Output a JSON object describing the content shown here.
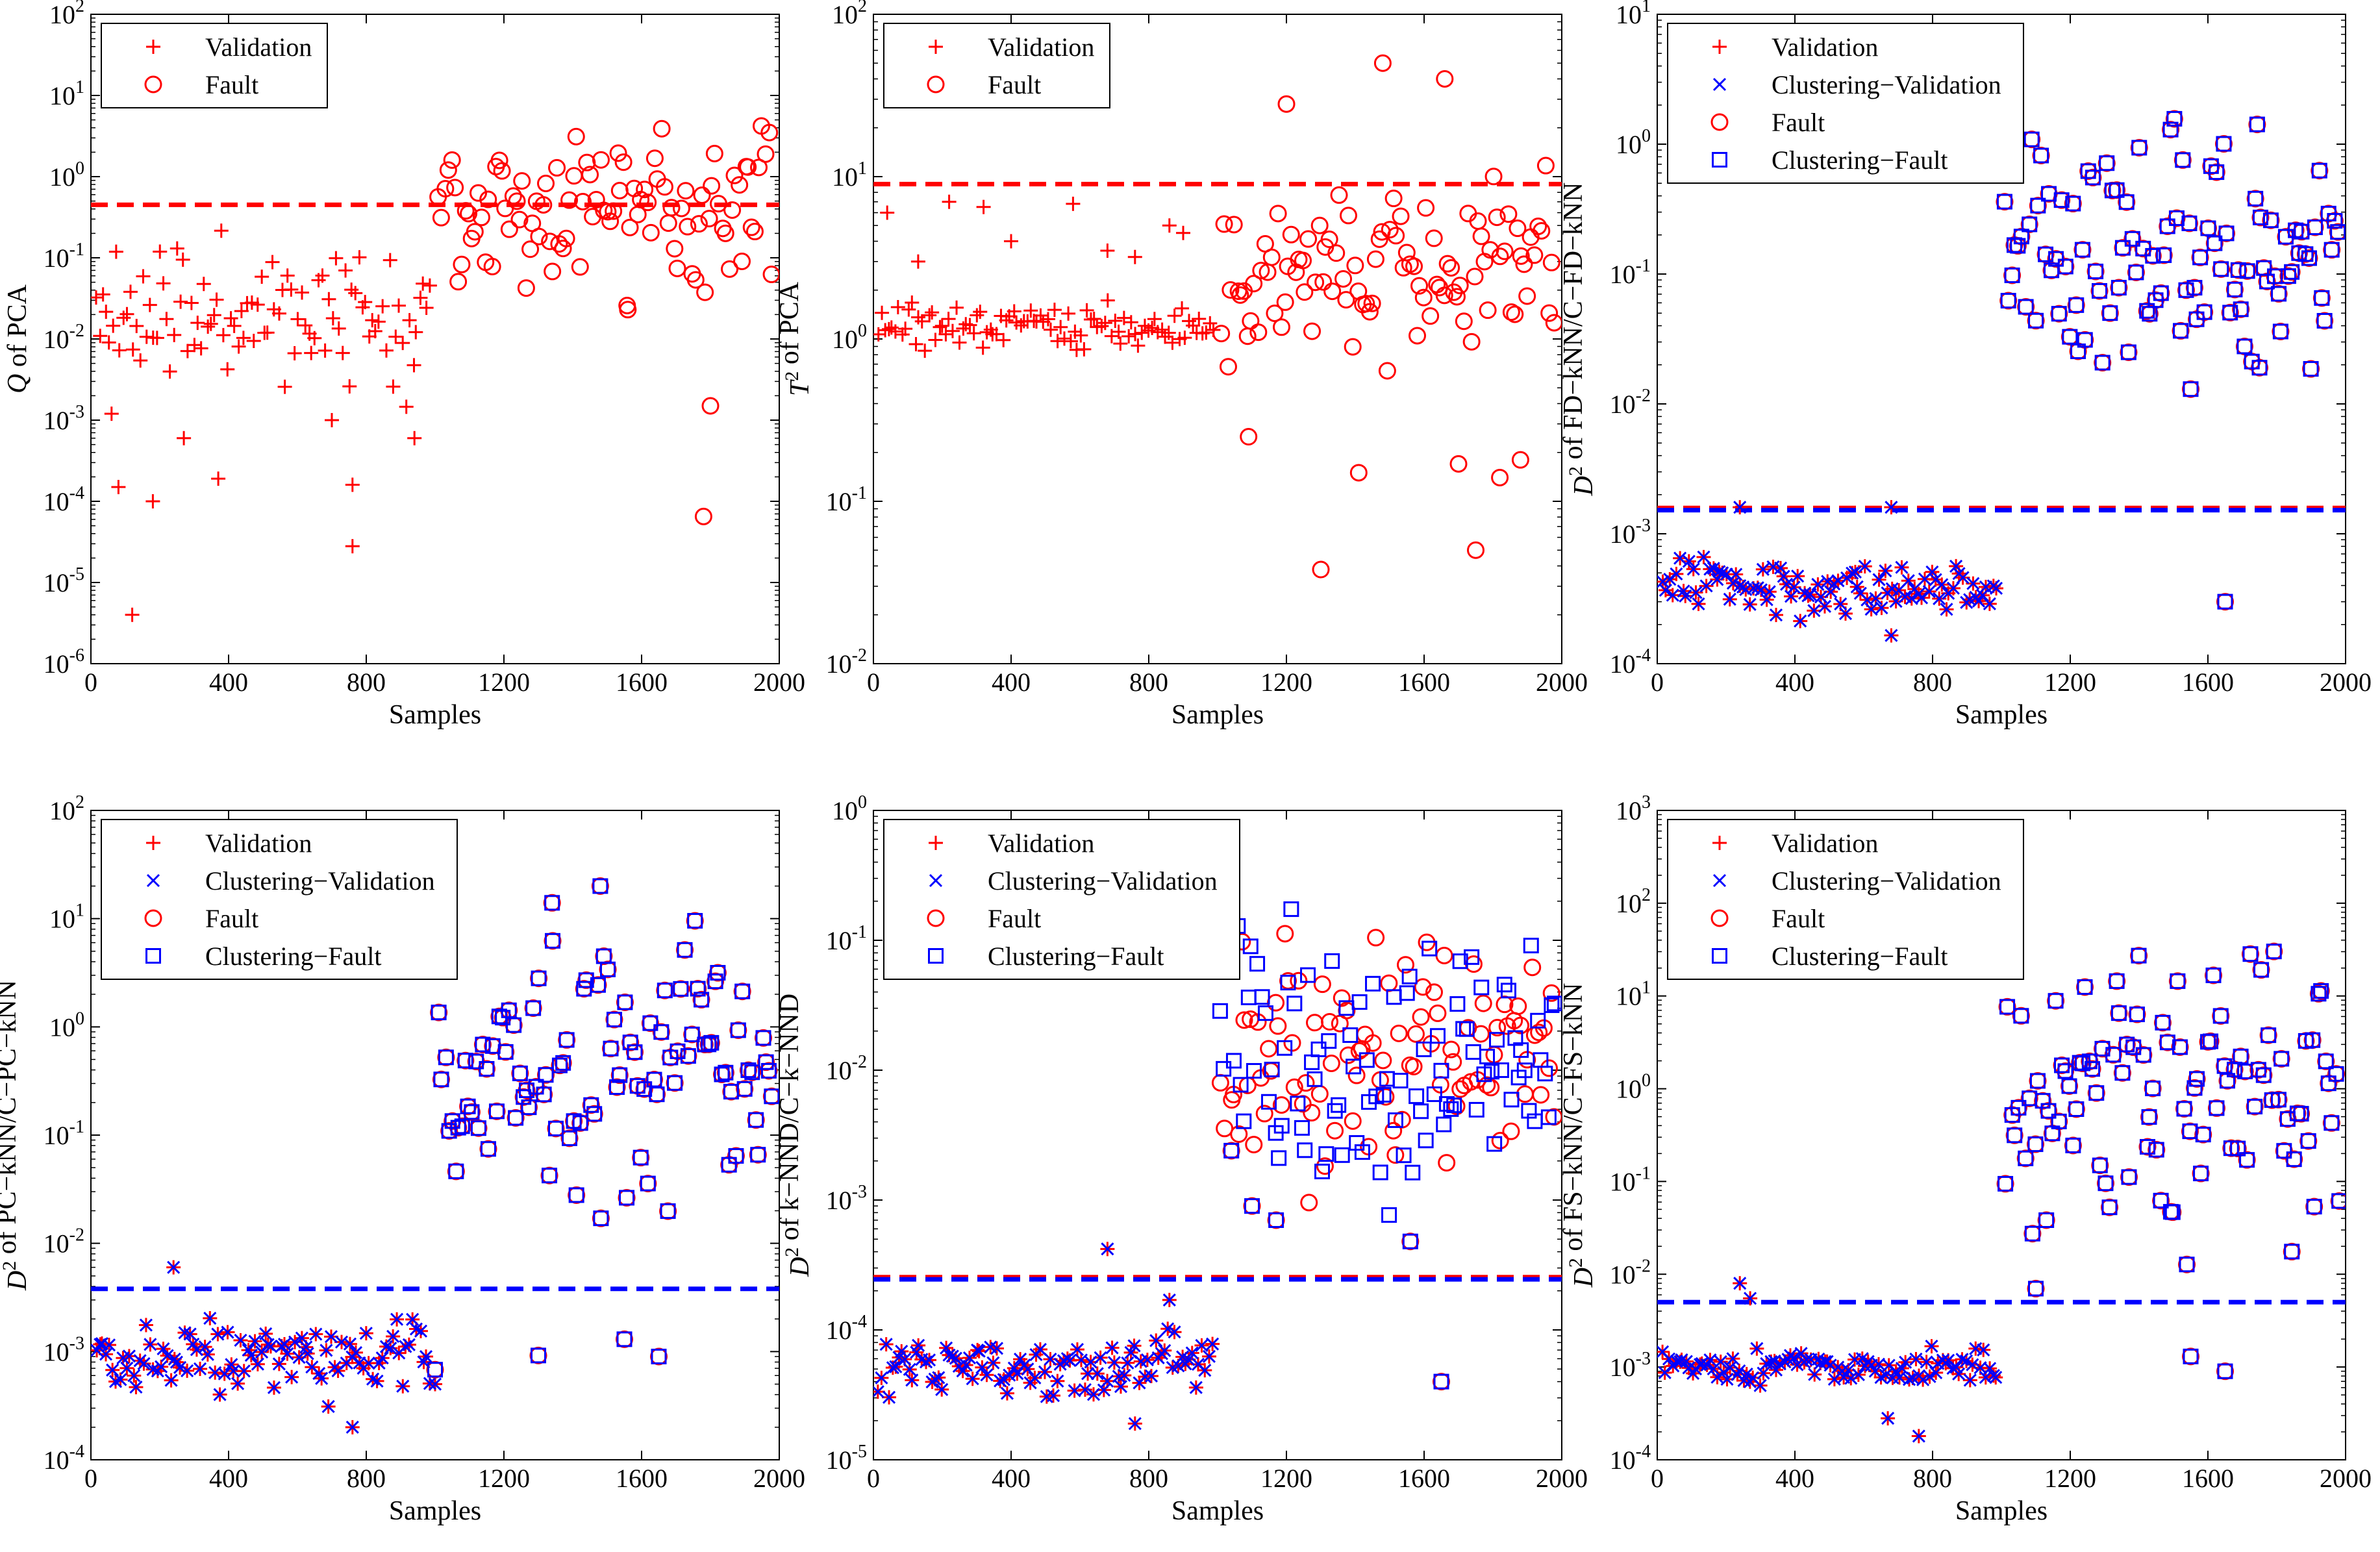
{
  "figure": {
    "colors": {
      "red": "#ff0000",
      "blue": "#0000ff",
      "black": "#000000"
    }
  },
  "chart_data": [
    {
      "type": "scatter",
      "id": "pca-q",
      "xlabel": "Samples",
      "ylabel": "Q of PCA",
      "ylabel_parts": [
        {
          "t": "Q",
          "i": true
        },
        {
          "t": " of PCA"
        }
      ],
      "yscale": "log",
      "xlim": [
        0,
        2000
      ],
      "ylim": [
        1e-06,
        100
      ],
      "xticks": [
        "0",
        "400",
        "800",
        "1200",
        "1600",
        "2000"
      ],
      "ytick_exponents": [
        -6,
        -5,
        -4,
        -3,
        -2,
        -1,
        0,
        1,
        2
      ],
      "control_limit": 0.45,
      "limits": [
        {
          "value": 0.45,
          "color": "red"
        }
      ],
      "legend": [
        {
          "label": "Validation",
          "marker": "plus",
          "color": "red"
        },
        {
          "label": "Fault",
          "marker": "circle",
          "color": "red"
        }
      ],
      "normal_range": [
        -2.9,
        -0.45
      ],
      "fault_range": [
        -1.9,
        1.2
      ],
      "normal_outliers": [
        [
          120,
          4e-06
        ],
        [
          760,
          2.8e-05
        ],
        [
          180,
          0.0001
        ],
        [
          80,
          0.00015
        ],
        [
          760,
          0.00016
        ],
        [
          370,
          0.00019
        ],
        [
          270,
          0.0006
        ],
        [
          940,
          0.0006
        ],
        [
          60,
          0.0012
        ],
        [
          700,
          0.001
        ]
      ],
      "fault_outliers": [
        [
          1780,
          6.5e-05
        ],
        [
          1800,
          0.0015
        ],
        [
          1560,
          0.023
        ]
      ],
      "series": [
        {
          "name": "Validation",
          "role": "normal",
          "marker": "plus",
          "color": "red",
          "seed": 11,
          "dx": 0
        },
        {
          "name": "Fault",
          "role": "fault",
          "marker": "circle",
          "color": "red",
          "seed": 12,
          "dx": 0
        }
      ]
    },
    {
      "type": "scatter",
      "id": "pca-t2",
      "xlabel": "Samples",
      "ylabel": "T2 of PCA",
      "ylabel_parts": [
        {
          "t": "T",
          "i": true
        },
        {
          "t": "2",
          "sup": true
        },
        {
          "t": " of PCA"
        }
      ],
      "yscale": "log",
      "xlim": [
        0,
        2000
      ],
      "ylim": [
        0.01,
        100
      ],
      "xticks": [
        "0",
        "400",
        "800",
        "1200",
        "1600",
        "2000"
      ],
      "ytick_exponents": [
        -2,
        -1,
        0,
        1,
        2
      ],
      "control_limit": 9,
      "limits": [
        {
          "value": 9,
          "color": "red"
        }
      ],
      "legend": [
        {
          "label": "Validation",
          "marker": "plus",
          "color": "red"
        },
        {
          "label": "Fault",
          "marker": "circle",
          "color": "red"
        }
      ],
      "normal_range": [
        -0.12,
        0.28
      ],
      "fault_range": [
        -0.3,
        1.2
      ],
      "normal_outliers": [
        [
          40,
          6
        ],
        [
          220,
          7
        ],
        [
          320,
          6.5
        ],
        [
          580,
          6.8
        ],
        [
          860,
          5
        ],
        [
          900,
          4.5
        ],
        [
          130,
          3
        ],
        [
          400,
          4
        ],
        [
          680,
          3.5
        ],
        [
          760,
          3.2
        ]
      ],
      "fault_outliers": [
        [
          1300,
          0.038
        ],
        [
          1750,
          0.05
        ],
        [
          1410,
          0.15
        ],
        [
          1700,
          0.17
        ],
        [
          1820,
          0.14
        ],
        [
          1880,
          0.18
        ],
        [
          1090,
          0.25
        ],
        [
          1480,
          50
        ],
        [
          1660,
          40
        ],
        [
          1200,
          28
        ]
      ],
      "series": [
        {
          "name": "Validation",
          "role": "normal",
          "marker": "plus",
          "color": "red",
          "seed": 21,
          "dx": 0
        },
        {
          "name": "Fault",
          "role": "fault",
          "marker": "circle",
          "color": "red",
          "seed": 22,
          "dx": 0
        }
      ]
    },
    {
      "type": "scatter",
      "id": "fd-knn",
      "xlabel": "Samples",
      "ylabel": "D2 of FD-kNN/C-FD-kNN",
      "ylabel_parts": [
        {
          "t": "D",
          "i": true
        },
        {
          "t": "2",
          "sup": true
        },
        {
          "t": " of FD−kNN/C−FD−kNN"
        }
      ],
      "yscale": "log",
      "xlim": [
        0,
        2000
      ],
      "ylim": [
        0.0001,
        10
      ],
      "xticks": [
        "0",
        "400",
        "800",
        "1200",
        "1600",
        "2000"
      ],
      "ytick_exponents": [
        -4,
        -3,
        -2,
        -1,
        0,
        1
      ],
      "control_limit": 0.00155,
      "limits": [
        {
          "value": 0.00158,
          "color": "red"
        },
        {
          "value": 0.00152,
          "color": "blue"
        }
      ],
      "legend": [
        {
          "label": "Validation",
          "marker": "plus",
          "color": "red"
        },
        {
          "label": "Clustering−Validation",
          "marker": "cross",
          "color": "blue"
        },
        {
          "label": "Fault",
          "marker": "circle",
          "color": "red"
        },
        {
          "label": "Clustering−Fault",
          "marker": "square",
          "color": "blue"
        }
      ],
      "normal_range": [
        -3.75,
        -3.05
      ],
      "fault_range": [
        -2.1,
        0.5
      ],
      "normal_outliers": [
        [
          680,
          0.000165
        ],
        [
          240,
          0.0016
        ],
        [
          680,
          0.0016
        ]
      ],
      "fault_outliers": [
        [
          1650,
          0.0003
        ],
        [
          1550,
          0.013
        ],
        [
          1750,
          0.019
        ]
      ],
      "series": [
        {
          "name": "Validation",
          "role": "normal",
          "marker": "plus",
          "color": "red",
          "seed": 31,
          "dx": 0
        },
        {
          "name": "Clustering−Validation",
          "role": "normal",
          "marker": "cross",
          "color": "blue",
          "seed": 31,
          "dx": 0
        },
        {
          "name": "Fault",
          "role": "fault",
          "marker": "circle",
          "color": "red",
          "seed": 32,
          "dx": 0
        },
        {
          "name": "Clustering−Fault",
          "role": "fault",
          "marker": "square",
          "color": "blue",
          "seed": 32,
          "dx": 0
        }
      ]
    },
    {
      "type": "scatter",
      "id": "pc-knn",
      "xlabel": "Samples",
      "ylabel": "D2 of PC-kNN/C-PC-kNN",
      "ylabel_parts": [
        {
          "t": "D",
          "i": true
        },
        {
          "t": "2",
          "sup": true
        },
        {
          "t": " of PC−kNN/C−PC−kNN"
        }
      ],
      "yscale": "log",
      "xlim": [
        0,
        2000
      ],
      "ylim": [
        0.0001,
        100
      ],
      "xticks": [
        "0",
        "400",
        "800",
        "1200",
        "1600",
        "2000"
      ],
      "ytick_exponents": [
        -4,
        -3,
        -2,
        -1,
        0,
        1,
        2
      ],
      "control_limit": 0.0038,
      "limits": [
        {
          "value": 0.0038,
          "color": "blue"
        }
      ],
      "legend": [
        {
          "label": "Validation",
          "marker": "plus",
          "color": "red"
        },
        {
          "label": "Clustering−Validation",
          "marker": "cross",
          "color": "blue"
        },
        {
          "label": "Fault",
          "marker": "circle",
          "color": "red"
        },
        {
          "label": "Clustering−Fault",
          "marker": "square",
          "color": "blue"
        }
      ],
      "normal_range": [
        -3.55,
        -2.55
      ],
      "fault_range": [
        -2.1,
        1.3
      ],
      "normal_outliers": [
        [
          760,
          0.0002
        ],
        [
          240,
          0.006
        ],
        [
          1000,
          0.0005
        ]
      ],
      "fault_outliers": [
        [
          1650,
          0.0009
        ],
        [
          1550,
          0.0013
        ],
        [
          1300,
          0.00092
        ],
        [
          1000,
          0.00068
        ],
        [
          1340,
          14
        ],
        [
          1480,
          20
        ]
      ],
      "series": [
        {
          "name": "Validation",
          "role": "normal",
          "marker": "plus",
          "color": "red",
          "seed": 41,
          "dx": 0
        },
        {
          "name": "Clustering−Validation",
          "role": "normal",
          "marker": "cross",
          "color": "blue",
          "seed": 41,
          "dx": 0
        },
        {
          "name": "Fault",
          "role": "fault",
          "marker": "circle",
          "color": "red",
          "seed": 42,
          "dx": 0
        },
        {
          "name": "Clustering−Fault",
          "role": "fault",
          "marker": "square",
          "color": "blue",
          "seed": 42,
          "dx": 0
        }
      ]
    },
    {
      "type": "scatter",
      "id": "k-nnd",
      "xlabel": "Samples",
      "ylabel": "D2 of k-NND/C-k-NND",
      "ylabel_parts": [
        {
          "t": "D",
          "i": true
        },
        {
          "t": "2",
          "sup": true
        },
        {
          "t": " of k−NND/C−k−NND"
        }
      ],
      "yscale": "log",
      "xlim": [
        0,
        2000
      ],
      "ylim": [
        1e-05,
        1
      ],
      "xticks": [
        "0",
        "400",
        "800",
        "1200",
        "1600",
        "2000"
      ],
      "ytick_exponents": [
        -5,
        -4,
        -3,
        -2,
        -1,
        0
      ],
      "control_limit": 0.00025,
      "limits": [
        {
          "value": 0.000255,
          "color": "red"
        },
        {
          "value": 0.000245,
          "color": "blue"
        }
      ],
      "legend": [
        {
          "label": "Validation",
          "marker": "plus",
          "color": "red"
        },
        {
          "label": "Clustering−Validation",
          "marker": "cross",
          "color": "blue"
        },
        {
          "label": "Fault",
          "marker": "circle",
          "color": "red"
        },
        {
          "label": "Clustering−Fault",
          "marker": "square",
          "color": "blue"
        }
      ],
      "normal_range": [
        -4.6,
        -3.95
      ],
      "fault_range": [
        -3.3,
        -0.45
      ],
      "normal_outliers": [
        [
          760,
          1.9e-05
        ],
        [
          680,
          0.00042
        ],
        [
          860,
          0.00017
        ]
      ],
      "fault_outliers": [
        [
          1650,
          4e-05
        ],
        [
          1560,
          0.00048
        ],
        [
          1040,
          0.0024
        ],
        [
          1100,
          0.0009
        ],
        [
          1170,
          0.0007
        ]
      ],
      "series": [
        {
          "name": "Validation",
          "role": "normal",
          "marker": "plus",
          "color": "red",
          "seed": 51,
          "dx": 0
        },
        {
          "name": "Clustering−Validation",
          "role": "normal",
          "marker": "cross",
          "color": "blue",
          "seed": 51,
          "dx": 0
        },
        {
          "name": "Fault",
          "role": "fault",
          "marker": "circle",
          "color": "red",
          "seed": 52,
          "dx": 0
        },
        {
          "name": "Clustering−Fault",
          "role": "fault",
          "marker": "square",
          "color": "blue",
          "seed": 53,
          "dx": 0
        }
      ]
    },
    {
      "type": "scatter",
      "id": "fs-knn",
      "xlabel": "Samples",
      "ylabel": "D2 of FS-kNN/C-FS-kNN",
      "ylabel_parts": [
        {
          "t": "D",
          "i": true
        },
        {
          "t": "2",
          "sup": true
        },
        {
          "t": " of FS−kNN/C−FS−kNN"
        }
      ],
      "yscale": "log",
      "xlim": [
        0,
        2000
      ],
      "ylim": [
        0.0001,
        1000
      ],
      "xticks": [
        "0",
        "400",
        "800",
        "1200",
        "1600",
        "2000"
      ],
      "ytick_exponents": [
        -4,
        -3,
        -2,
        -1,
        0,
        1,
        2,
        3
      ],
      "control_limit": 0.005,
      "limits": [
        {
          "value": 0.005,
          "color": "blue"
        }
      ],
      "legend": [
        {
          "label": "Validation",
          "marker": "plus",
          "color": "red"
        },
        {
          "label": "Clustering−Validation",
          "marker": "cross",
          "color": "blue"
        },
        {
          "label": "Fault",
          "marker": "circle",
          "color": "red"
        },
        {
          "label": "Clustering−Fault",
          "marker": "square",
          "color": "blue"
        }
      ],
      "normal_range": [
        -3.3,
        -2.7
      ],
      "fault_range": [
        -2.2,
        2.25
      ],
      "normal_outliers": [
        [
          760,
          0.00018
        ],
        [
          670,
          0.00028
        ],
        [
          240,
          0.008
        ],
        [
          270,
          0.0055
        ]
      ],
      "fault_outliers": [
        [
          1650,
          0.0009
        ],
        [
          1550,
          0.0013
        ],
        [
          1100,
          0.007
        ]
      ],
      "series": [
        {
          "name": "Validation",
          "role": "normal",
          "marker": "plus",
          "color": "red",
          "seed": 61,
          "dx": 0
        },
        {
          "name": "Clustering−Validation",
          "role": "normal",
          "marker": "cross",
          "color": "blue",
          "seed": 61,
          "dx": 0
        },
        {
          "name": "Fault",
          "role": "fault",
          "marker": "circle",
          "color": "red",
          "seed": 62,
          "dx": 0
        },
        {
          "name": "Clustering−Fault",
          "role": "fault",
          "marker": "square",
          "color": "blue",
          "seed": 62,
          "dx": 0
        }
      ]
    }
  ]
}
